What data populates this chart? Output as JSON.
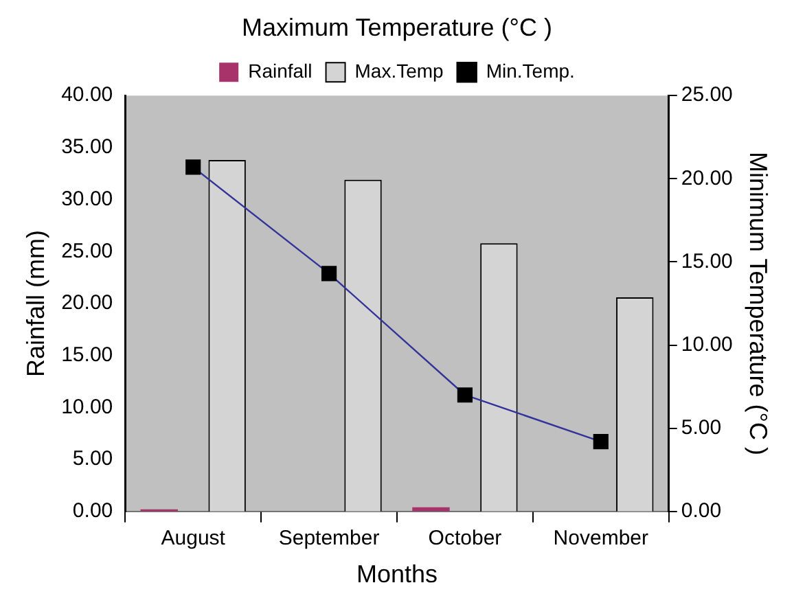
{
  "chart_data": {
    "type": "bar",
    "title": "Maximum Temperature (°C )",
    "xlabel": "Months",
    "ylabel": "Rainfall (mm)",
    "y2label": "Minimum Temperature (°C )",
    "categories": [
      "August",
      "September",
      "October",
      "November"
    ],
    "series": [
      {
        "name": "Rainfall",
        "color": "#a8336b",
        "values": [
          0.2,
          0,
          0.4,
          0
        ]
      },
      {
        "name": "Max.Temp",
        "color": "#d4d4d4",
        "values": [
          33.8,
          31.9,
          25.8,
          20.6
        ]
      },
      {
        "name": "Min.Temp.",
        "type": "line",
        "axis": "y2",
        "color": "#333399",
        "values": [
          20.7,
          14.3,
          7.0,
          4.2
        ]
      }
    ],
    "ylim": [
      0,
      40
    ],
    "yticks": [
      {
        "value": 0,
        "label": "0.00"
      },
      {
        "value": 5,
        "label": "5.00"
      },
      {
        "value": 10,
        "label": "10.00"
      },
      {
        "value": 15,
        "label": "15.00"
      },
      {
        "value": 20,
        "label": "20.00"
      },
      {
        "value": 25,
        "label": "25.00"
      },
      {
        "value": 30,
        "label": "30.00"
      },
      {
        "value": 35,
        "label": "35.00"
      },
      {
        "value": 40,
        "label": "40.00"
      }
    ],
    "y2lim": [
      0,
      25
    ],
    "y2ticks": [
      {
        "value": 0,
        "label": "0.00"
      },
      {
        "value": 5,
        "label": "5.00"
      },
      {
        "value": 10,
        "label": "10.00"
      },
      {
        "value": 15,
        "label": "15.00"
      },
      {
        "value": 20,
        "label": "20.00"
      },
      {
        "value": 25,
        "label": "25.00"
      }
    ],
    "legend": "top",
    "marker": "square",
    "line_style": "solid"
  }
}
